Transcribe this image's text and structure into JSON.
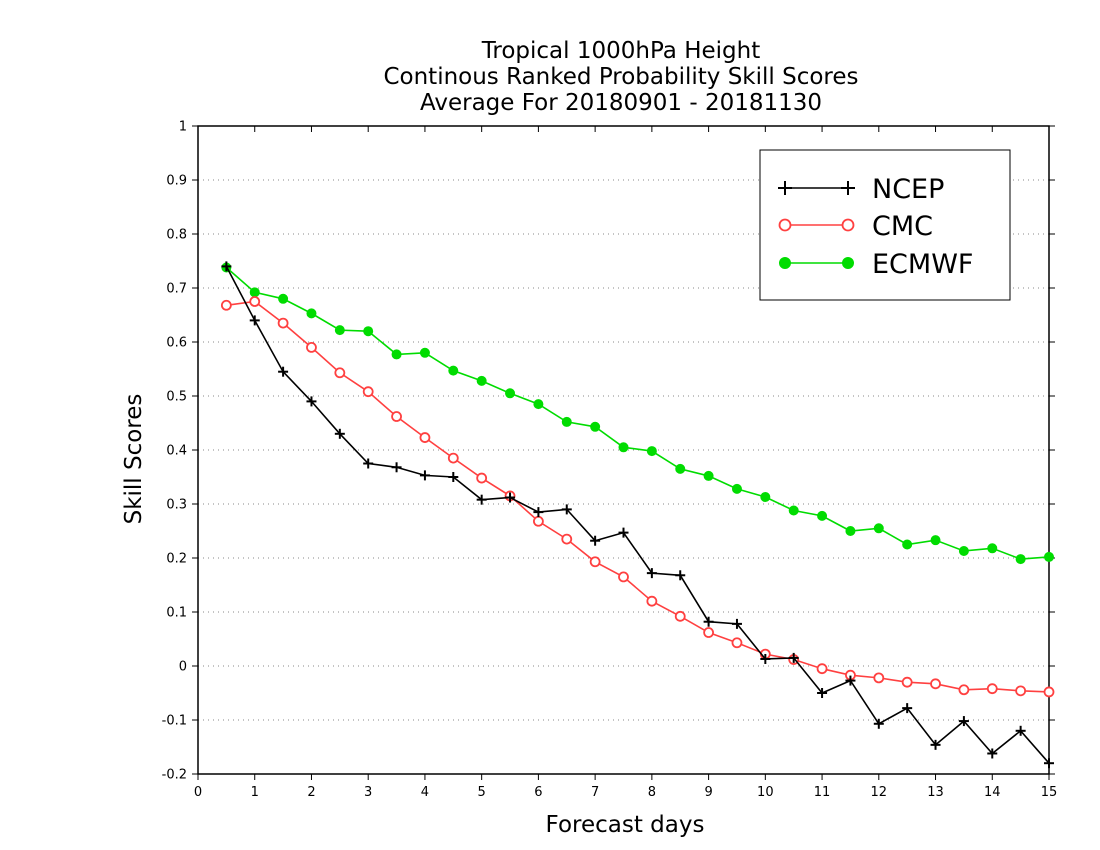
{
  "chart_data": {
    "type": "line",
    "title": [
      "Tropical 1000hPa Height",
      "Continous Ranked Probability Skill Scores",
      "Average For 20180901 - 20181130"
    ],
    "xlabel": "Forecast days",
    "ylabel": "Skill Scores",
    "xlim": [
      0,
      15
    ],
    "ylim": [
      -0.2,
      1
    ],
    "xticks": [
      0,
      1,
      2,
      3,
      4,
      5,
      6,
      7,
      8,
      9,
      10,
      11,
      12,
      13,
      14,
      15
    ],
    "xtick_labels": [
      "0",
      "1",
      "2",
      "3",
      "4",
      "5",
      "6",
      "7",
      "8",
      "9",
      "10",
      "11",
      "12",
      "13",
      "14",
      "15"
    ],
    "yticks": [
      -0.2,
      -0.1,
      0,
      0.1,
      0.2,
      0.3,
      0.4,
      0.5,
      0.6,
      0.7,
      0.8,
      0.9,
      1
    ],
    "ytick_labels": [
      "-0.2",
      "-0.1",
      "0",
      "0.1",
      "0.2",
      "0.3",
      "0.4",
      "0.5",
      "0.6",
      "0.7",
      "0.8",
      "0.9",
      "1"
    ],
    "grid": "horizontal dotted",
    "legend_position": "top-right",
    "x": [
      0.5,
      1,
      1.5,
      2,
      2.5,
      3,
      3.5,
      4,
      4.5,
      5,
      5.5,
      6,
      6.5,
      7,
      7.5,
      8,
      8.5,
      9,
      9.5,
      10,
      10.5,
      11,
      11.5,
      12,
      12.5,
      13,
      13.5,
      14,
      14.5,
      15
    ],
    "series": [
      {
        "name": "NCEP",
        "color": "#000000",
        "marker": "plus",
        "values": [
          0.74,
          0.64,
          0.545,
          0.49,
          0.43,
          0.375,
          0.368,
          0.353,
          0.35,
          0.308,
          0.312,
          0.285,
          0.29,
          0.232,
          0.247,
          0.172,
          0.168,
          0.082,
          0.078,
          0.013,
          0.015,
          -0.05,
          -0.027,
          -0.107,
          -0.078,
          -0.146,
          -0.102,
          -0.162,
          -0.12,
          -0.18
        ]
      },
      {
        "name": "CMC",
        "color": "#ff4040",
        "marker": "open-circle",
        "values": [
          0.668,
          0.675,
          0.635,
          0.59,
          0.543,
          0.508,
          0.462,
          0.423,
          0.385,
          0.348,
          0.315,
          0.268,
          0.235,
          0.193,
          0.165,
          0.12,
          0.092,
          0.062,
          0.043,
          0.022,
          0.012,
          -0.005,
          -0.017,
          -0.022,
          -0.03,
          -0.033,
          -0.044,
          -0.042,
          -0.046,
          -0.048
        ]
      },
      {
        "name": "ECMWF",
        "color": "#00dc00",
        "marker": "filled-circle",
        "values": [
          0.738,
          0.692,
          0.68,
          0.653,
          0.622,
          0.62,
          0.577,
          0.58,
          0.547,
          0.528,
          0.505,
          0.485,
          0.452,
          0.443,
          0.405,
          0.398,
          0.365,
          0.352,
          0.328,
          0.313,
          0.288,
          0.278,
          0.25,
          0.255,
          0.225,
          0.233,
          0.213,
          0.218,
          0.198,
          0.202
        ]
      }
    ]
  }
}
